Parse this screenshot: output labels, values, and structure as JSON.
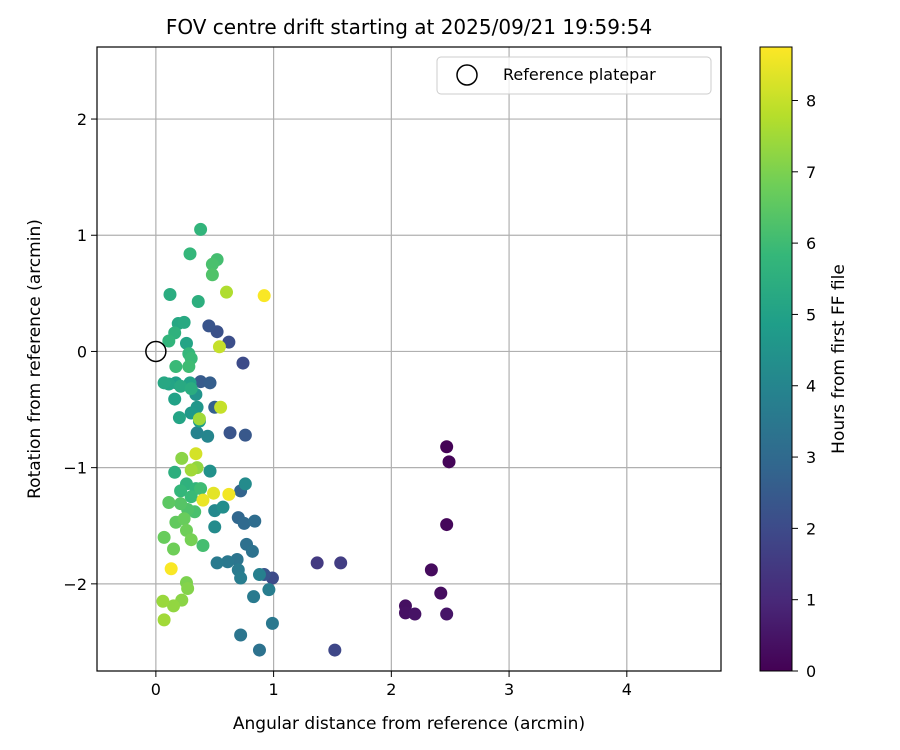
{
  "chart_data": {
    "type": "scatter",
    "title": "FOV centre drift starting at 2025/09/21 19:59:54",
    "xlabel": "Angular distance from reference (arcmin)",
    "ylabel": "Rotation from reference (arcmin)",
    "xlim": [
      -0.5,
      4.8
    ],
    "ylim": [
      -2.75,
      2.62
    ],
    "xticks": [
      0,
      1,
      2,
      3,
      4
    ],
    "yticks": [
      -2,
      -1,
      0,
      1,
      2
    ],
    "xtick_labels": [
      "0",
      "1",
      "2",
      "3",
      "4"
    ],
    "ytick_labels": [
      "−2",
      "−1",
      "0",
      "1",
      "2"
    ],
    "grid": true,
    "legend": {
      "position": "top-right",
      "label": "Reference platepar"
    },
    "reference_point": {
      "x": 0,
      "y": 0
    },
    "colorbar": {
      "label": "Hours from first FF file",
      "range": [
        0,
        8.75
      ],
      "ticks": [
        0,
        1,
        2,
        3,
        4,
        5,
        6,
        7,
        8
      ],
      "tick_labels": [
        "0",
        "1",
        "2",
        "3",
        "4",
        "5",
        "6",
        "7",
        "8"
      ],
      "colormap": "viridis",
      "stops": [
        "#440154",
        "#482878",
        "#3e4989",
        "#31688e",
        "#26828e",
        "#1f9e89",
        "#35b779",
        "#6ece58",
        "#b5de2b",
        "#fde725"
      ]
    },
    "points": [
      {
        "x": 2.47,
        "y": -0.82,
        "h": 0.05
      },
      {
        "x": 2.49,
        "y": -0.95,
        "h": 0.1
      },
      {
        "x": 2.47,
        "y": -1.49,
        "h": 0.15
      },
      {
        "x": 2.34,
        "y": -1.88,
        "h": 0.25
      },
      {
        "x": 2.42,
        "y": -2.08,
        "h": 0.3
      },
      {
        "x": 2.12,
        "y": -2.19,
        "h": 0.35
      },
      {
        "x": 2.12,
        "y": -2.25,
        "h": 0.4
      },
      {
        "x": 2.2,
        "y": -2.26,
        "h": 0.45
      },
      {
        "x": 2.47,
        "y": -2.26,
        "h": 0.5
      },
      {
        "x": 1.37,
        "y": -1.82,
        "h": 1.5
      },
      {
        "x": 1.57,
        "y": -1.82,
        "h": 1.6
      },
      {
        "x": 1.52,
        "y": -2.57,
        "h": 1.9
      },
      {
        "x": 0.99,
        "y": -1.95,
        "h": 2.0
      },
      {
        "x": 0.92,
        "y": -1.92,
        "h": 2.3
      },
      {
        "x": 0.74,
        "y": -0.1,
        "h": 2.0
      },
      {
        "x": 0.62,
        "y": 0.08,
        "h": 2.1
      },
      {
        "x": 0.52,
        "y": 0.17,
        "h": 2.2
      },
      {
        "x": 0.45,
        "y": 0.22,
        "h": 2.3
      },
      {
        "x": 0.63,
        "y": -0.7,
        "h": 2.3
      },
      {
        "x": 0.76,
        "y": -0.72,
        "h": 2.4
      },
      {
        "x": 0.38,
        "y": -0.26,
        "h": 2.5
      },
      {
        "x": 0.46,
        "y": -0.27,
        "h": 2.6
      },
      {
        "x": 0.5,
        "y": -0.48,
        "h": 2.7
      },
      {
        "x": 0.72,
        "y": -1.2,
        "h": 2.8
      },
      {
        "x": 0.7,
        "y": -1.43,
        "h": 2.9
      },
      {
        "x": 0.75,
        "y": -1.48,
        "h": 3.0
      },
      {
        "x": 0.84,
        "y": -1.46,
        "h": 3.1
      },
      {
        "x": 0.77,
        "y": -1.66,
        "h": 3.2
      },
      {
        "x": 0.82,
        "y": -1.72,
        "h": 3.3
      },
      {
        "x": 0.69,
        "y": -1.79,
        "h": 3.4
      },
      {
        "x": 0.61,
        "y": -1.81,
        "h": 3.5
      },
      {
        "x": 0.52,
        "y": -1.82,
        "h": 3.6
      },
      {
        "x": 0.7,
        "y": -1.88,
        "h": 3.6
      },
      {
        "x": 0.72,
        "y": -1.95,
        "h": 3.7
      },
      {
        "x": 0.88,
        "y": -1.92,
        "h": 3.8
      },
      {
        "x": 0.96,
        "y": -2.05,
        "h": 3.7
      },
      {
        "x": 0.83,
        "y": -2.11,
        "h": 3.6
      },
      {
        "x": 0.99,
        "y": -2.34,
        "h": 3.5
      },
      {
        "x": 0.72,
        "y": -2.44,
        "h": 3.4
      },
      {
        "x": 0.88,
        "y": -2.57,
        "h": 3.3
      },
      {
        "x": 0.35,
        "y": -0.7,
        "h": 3.9
      },
      {
        "x": 0.44,
        "y": -0.73,
        "h": 4.0
      },
      {
        "x": 0.5,
        "y": -1.37,
        "h": 4.1
      },
      {
        "x": 0.5,
        "y": -1.51,
        "h": 4.2
      },
      {
        "x": 0.57,
        "y": -1.34,
        "h": 4.3
      },
      {
        "x": 0.46,
        "y": -1.03,
        "h": 4.4
      },
      {
        "x": 0.76,
        "y": -1.14,
        "h": 4.2
      },
      {
        "x": 0.34,
        "y": -0.37,
        "h": 4.5
      },
      {
        "x": 0.35,
        "y": -0.48,
        "h": 4.6
      },
      {
        "x": 0.3,
        "y": -0.53,
        "h": 4.7
      },
      {
        "x": 0.37,
        "y": -0.6,
        "h": 4.8
      },
      {
        "x": 0.17,
        "y": -0.27,
        "h": 4.9
      },
      {
        "x": 0.29,
        "y": -0.27,
        "h": 5.0
      },
      {
        "x": 0.11,
        "y": -0.28,
        "h": 5.1
      },
      {
        "x": 0.07,
        "y": -0.27,
        "h": 5.2
      },
      {
        "x": 0.21,
        "y": -0.3,
        "h": 5.3
      },
      {
        "x": 0.3,
        "y": -0.32,
        "h": 5.4
      },
      {
        "x": 0.26,
        "y": 0.07,
        "h": 5.1
      },
      {
        "x": 0.19,
        "y": 0.24,
        "h": 5.2
      },
      {
        "x": 0.24,
        "y": 0.25,
        "h": 5.3
      },
      {
        "x": 0.12,
        "y": 0.49,
        "h": 5.4
      },
      {
        "x": 0.36,
        "y": 0.43,
        "h": 5.5
      },
      {
        "x": 0.16,
        "y": 0.16,
        "h": 5.6
      },
      {
        "x": 0.11,
        "y": 0.09,
        "h": 5.7
      },
      {
        "x": 0.28,
        "y": -0.02,
        "h": 5.8
      },
      {
        "x": 0.3,
        "y": -0.06,
        "h": 5.9
      },
      {
        "x": 0.28,
        "y": -0.13,
        "h": 6.0
      },
      {
        "x": 0.17,
        "y": -0.13,
        "h": 5.9
      },
      {
        "x": 0.38,
        "y": 1.05,
        "h": 5.7
      },
      {
        "x": 0.29,
        "y": 0.84,
        "h": 5.8
      },
      {
        "x": 0.52,
        "y": 0.79,
        "h": 6.1
      },
      {
        "x": 0.48,
        "y": 0.75,
        "h": 6.2
      },
      {
        "x": 0.48,
        "y": 0.66,
        "h": 6.3
      },
      {
        "x": 0.16,
        "y": -0.41,
        "h": 5.0
      },
      {
        "x": 0.2,
        "y": -0.57,
        "h": 5.1
      },
      {
        "x": 0.16,
        "y": -1.04,
        "h": 5.5
      },
      {
        "x": 0.26,
        "y": -1.14,
        "h": 5.6
      },
      {
        "x": 0.34,
        "y": -1.18,
        "h": 5.7
      },
      {
        "x": 0.21,
        "y": -1.2,
        "h": 5.8
      },
      {
        "x": 0.3,
        "y": -1.25,
        "h": 5.9
      },
      {
        "x": 0.38,
        "y": -1.18,
        "h": 6.0
      },
      {
        "x": 0.4,
        "y": -1.67,
        "h": 6.1
      },
      {
        "x": 0.33,
        "y": -1.38,
        "h": 6.2
      },
      {
        "x": 0.27,
        "y": -1.36,
        "h": 6.3
      },
      {
        "x": 0.21,
        "y": -1.31,
        "h": 6.4
      },
      {
        "x": 0.11,
        "y": -1.3,
        "h": 6.5
      },
      {
        "x": 0.17,
        "y": -1.47,
        "h": 6.6
      },
      {
        "x": 0.24,
        "y": -1.44,
        "h": 6.7
      },
      {
        "x": 0.26,
        "y": -1.54,
        "h": 6.8
      },
      {
        "x": 0.07,
        "y": -1.6,
        "h": 6.7
      },
      {
        "x": 0.15,
        "y": -1.7,
        "h": 6.8
      },
      {
        "x": 0.3,
        "y": -1.62,
        "h": 6.9
      },
      {
        "x": 0.26,
        "y": -1.99,
        "h": 7.0
      },
      {
        "x": 0.27,
        "y": -2.04,
        "h": 7.1
      },
      {
        "x": 0.22,
        "y": -2.14,
        "h": 7.2
      },
      {
        "x": 0.15,
        "y": -2.19,
        "h": 7.3
      },
      {
        "x": 0.06,
        "y": -2.15,
        "h": 7.4
      },
      {
        "x": 0.07,
        "y": -2.31,
        "h": 7.5
      },
      {
        "x": 0.35,
        "y": -1.0,
        "h": 7.3
      },
      {
        "x": 0.3,
        "y": -1.02,
        "h": 7.5
      },
      {
        "x": 0.22,
        "y": -0.92,
        "h": 7.2
      },
      {
        "x": 0.37,
        "y": -0.58,
        "h": 7.5
      },
      {
        "x": 0.6,
        "y": 0.51,
        "h": 7.7
      },
      {
        "x": 0.54,
        "y": 0.04,
        "h": 8.0
      },
      {
        "x": 0.55,
        "y": -0.48,
        "h": 8.0
      },
      {
        "x": 0.34,
        "y": -0.88,
        "h": 8.2
      },
      {
        "x": 0.49,
        "y": -1.22,
        "h": 8.4
      },
      {
        "x": 0.4,
        "y": -1.28,
        "h": 8.5
      },
      {
        "x": 0.62,
        "y": -1.23,
        "h": 8.6
      },
      {
        "x": 0.92,
        "y": 0.48,
        "h": 8.7
      },
      {
        "x": 0.13,
        "y": -1.87,
        "h": 8.7
      }
    ]
  }
}
